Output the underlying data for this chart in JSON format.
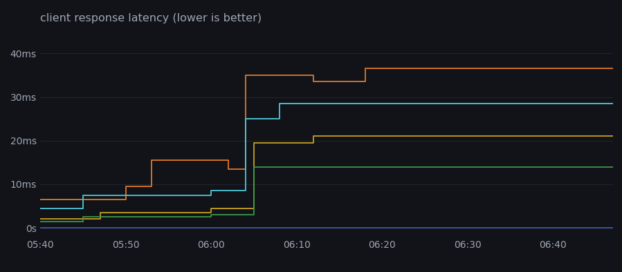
{
  "title": "client response latency (lower is better)",
  "background_color": "#111318",
  "plot_bg_color": "#111318",
  "grid_color": "#22262e",
  "text_color": "#9da5b4",
  "title_fontsize": 11.5,
  "tick_fontsize": 10,
  "ylim": [
    -2,
    46
  ],
  "yticks": [
    0,
    10,
    20,
    30,
    40
  ],
  "ytick_labels": [
    "0s",
    "10ms",
    "20ms",
    "30ms",
    "40ms"
  ],
  "x_start_min": 0,
  "x_end_min": 67,
  "xticks_min": [
    0,
    10,
    20,
    30,
    40,
    50,
    60
  ],
  "xtick_labels": [
    "05:40",
    "05:50",
    "06:00",
    "06:10",
    "06:20",
    "06:30",
    "06:40"
  ],
  "series": [
    {
      "color": "#e07828",
      "name": "orange",
      "x": [
        0,
        10,
        10,
        13,
        13,
        22,
        22,
        24,
        24,
        32,
        32,
        38,
        38,
        67
      ],
      "y": [
        6.5,
        6.5,
        9.5,
        9.5,
        15.5,
        15.5,
        13.5,
        13.5,
        35,
        35,
        33.5,
        33.5,
        36.5,
        36.5
      ]
    },
    {
      "color": "#4ec9d8",
      "name": "cyan",
      "x": [
        0,
        5,
        5,
        20,
        20,
        24,
        24,
        28,
        28,
        67
      ],
      "y": [
        4.5,
        4.5,
        7.5,
        7.5,
        8.5,
        8.5,
        25,
        25,
        28.5,
        28.5
      ]
    },
    {
      "color": "#c8a020",
      "name": "gold",
      "x": [
        0,
        7,
        7,
        20,
        20,
        25,
        25,
        32,
        32,
        67
      ],
      "y": [
        2,
        2,
        3.5,
        3.5,
        4.5,
        4.5,
        19.5,
        19.5,
        21,
        21
      ]
    },
    {
      "color": "#3a9848",
      "name": "green",
      "x": [
        0,
        5,
        5,
        20,
        20,
        25,
        25,
        67
      ],
      "y": [
        1.5,
        1.5,
        2.5,
        2.5,
        3,
        3,
        14,
        14
      ]
    },
    {
      "color": "#4455aa",
      "name": "baseline",
      "x": [
        0,
        67
      ],
      "y": [
        0,
        0
      ]
    }
  ]
}
